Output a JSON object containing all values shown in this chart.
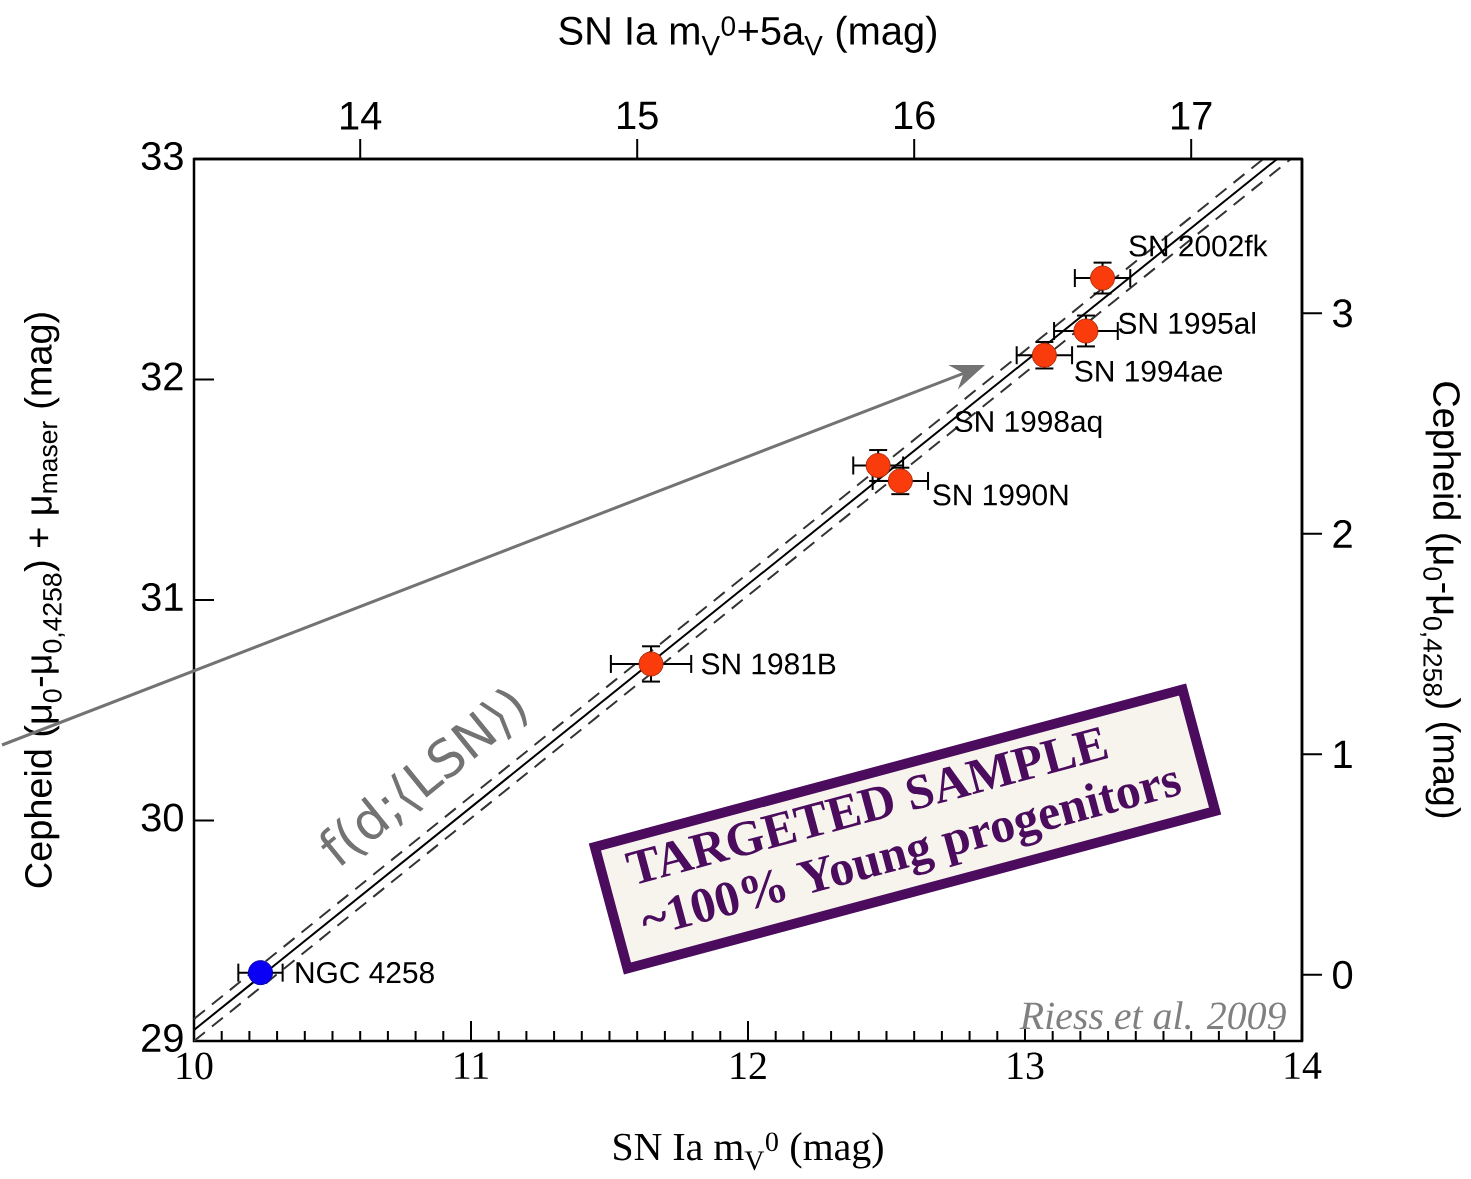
{
  "chart_data": {
    "type": "scatter",
    "xlabel": "SN Ia m$_{V}$$^{0}$ (mag)",
    "ylabel": "Cepheid (μ$_{0}$-μ$_{0,4258}$) + μ$_{maser}$ (mag)",
    "x2label": "SN Ia m$_{V}$$^{0}$+5a$_{V}$ (mag)",
    "y2label": "Cepheid (μ$_{0}$-μ$_{0,4258}$) (mag)",
    "xlim": [
      10,
      14
    ],
    "xticks": [
      10,
      11,
      12,
      13,
      14
    ],
    "ylim": [
      29,
      33
    ],
    "yticks": [
      29,
      30,
      31,
      32,
      33
    ],
    "x2lim": [
      13.4,
      17.4
    ],
    "x2ticks": [
      14,
      15,
      16,
      17
    ],
    "y2lim": [
      -0.3,
      3.7
    ],
    "y2ticks": [
      0,
      1,
      2,
      3
    ],
    "series": [
      {
        "type": "line",
        "color": "#000000",
        "line_style": "solid",
        "x": [
          10,
          13.91
        ],
        "values": [
          29.05,
          33
        ]
      },
      {
        "type": "line",
        "color": "#333333",
        "line_style": "dashed",
        "x": [
          10,
          13.86
        ],
        "values": [
          29.1,
          33
        ]
      },
      {
        "type": "line",
        "color": "#333333",
        "line_style": "dashed",
        "x": [
          10,
          13.96
        ],
        "values": [
          29.0,
          33
        ]
      },
      {
        "color": "#0a00f5",
        "marker": "circle",
        "x": [
          10.24
        ],
        "values": [
          29.31
        ],
        "xerrors": [
          0.08
        ]
      },
      {
        "color": "#fa3c0c",
        "marker": "circle",
        "x": [
          11.65,
          12.47,
          12.55,
          13.07,
          13.22,
          13.28
        ],
        "values": [
          30.71,
          31.61,
          31.54,
          32.11,
          32.22,
          32.46
        ],
        "xerrors": [
          0.145,
          0.09,
          0.1,
          0.1,
          0.115,
          0.1
        ],
        "errors": [
          0.08,
          0.07,
          0.06,
          0.06,
          0.07,
          0.07
        ]
      }
    ],
    "annotations": [
      {
        "text": "NGC 4258",
        "x": 10.24,
        "y": 29.31
      },
      {
        "text": "SN 1981B",
        "x": 11.65,
        "y": 30.71
      },
      {
        "text": "SN 1998aq",
        "x": 12.47,
        "y": 31.61
      },
      {
        "text": "SN 1990N",
        "x": 12.55,
        "y": 31.54
      },
      {
        "text": "SN 1994ae",
        "x": 13.07,
        "y": 32.11
      },
      {
        "text": "SN 1995al",
        "x": 13.22,
        "y": 32.22
      },
      {
        "text": "SN 2002fk",
        "x": 13.28,
        "y": 32.46
      },
      {
        "text": "f(d;⟨LSN⟩)",
        "x": 11.0,
        "y": 30.02
      },
      "TARGETED SAMPLE",
      "~100%  Young progenitors",
      "Riess et al. 2009"
    ]
  }
}
